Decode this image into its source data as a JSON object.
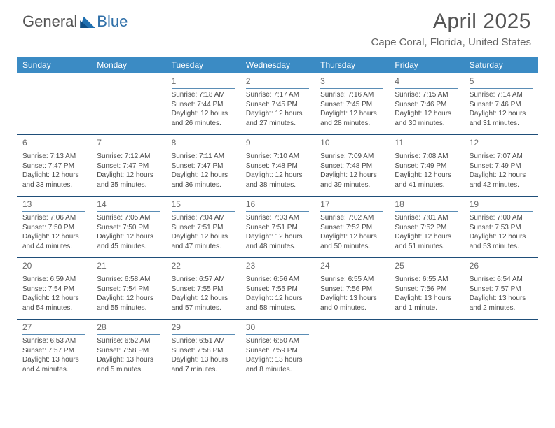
{
  "logo": {
    "text_a": "General",
    "text_b": "Blue"
  },
  "title": "April 2025",
  "subtitle": "Cape Coral, Florida, United States",
  "colors": {
    "header_blue": "#3b8bc4",
    "rule_dark": "#1f4e79",
    "rule_mid": "#5b8db5",
    "background": "#ffffff",
    "text": "#333333"
  },
  "day_headers": [
    "Sunday",
    "Monday",
    "Tuesday",
    "Wednesday",
    "Thursday",
    "Friday",
    "Saturday"
  ],
  "weeks": [
    [
      {
        "empty": true
      },
      {
        "empty": true
      },
      {
        "num": "1",
        "sunrise": "Sunrise: 7:18 AM",
        "sunset": "Sunset: 7:44 PM",
        "daylight1": "Daylight: 12 hours",
        "daylight2": "and 26 minutes."
      },
      {
        "num": "2",
        "sunrise": "Sunrise: 7:17 AM",
        "sunset": "Sunset: 7:45 PM",
        "daylight1": "Daylight: 12 hours",
        "daylight2": "and 27 minutes."
      },
      {
        "num": "3",
        "sunrise": "Sunrise: 7:16 AM",
        "sunset": "Sunset: 7:45 PM",
        "daylight1": "Daylight: 12 hours",
        "daylight2": "and 28 minutes."
      },
      {
        "num": "4",
        "sunrise": "Sunrise: 7:15 AM",
        "sunset": "Sunset: 7:46 PM",
        "daylight1": "Daylight: 12 hours",
        "daylight2": "and 30 minutes."
      },
      {
        "num": "5",
        "sunrise": "Sunrise: 7:14 AM",
        "sunset": "Sunset: 7:46 PM",
        "daylight1": "Daylight: 12 hours",
        "daylight2": "and 31 minutes."
      }
    ],
    [
      {
        "num": "6",
        "sunrise": "Sunrise: 7:13 AM",
        "sunset": "Sunset: 7:47 PM",
        "daylight1": "Daylight: 12 hours",
        "daylight2": "and 33 minutes."
      },
      {
        "num": "7",
        "sunrise": "Sunrise: 7:12 AM",
        "sunset": "Sunset: 7:47 PM",
        "daylight1": "Daylight: 12 hours",
        "daylight2": "and 35 minutes."
      },
      {
        "num": "8",
        "sunrise": "Sunrise: 7:11 AM",
        "sunset": "Sunset: 7:47 PM",
        "daylight1": "Daylight: 12 hours",
        "daylight2": "and 36 minutes."
      },
      {
        "num": "9",
        "sunrise": "Sunrise: 7:10 AM",
        "sunset": "Sunset: 7:48 PM",
        "daylight1": "Daylight: 12 hours",
        "daylight2": "and 38 minutes."
      },
      {
        "num": "10",
        "sunrise": "Sunrise: 7:09 AM",
        "sunset": "Sunset: 7:48 PM",
        "daylight1": "Daylight: 12 hours",
        "daylight2": "and 39 minutes."
      },
      {
        "num": "11",
        "sunrise": "Sunrise: 7:08 AM",
        "sunset": "Sunset: 7:49 PM",
        "daylight1": "Daylight: 12 hours",
        "daylight2": "and 41 minutes."
      },
      {
        "num": "12",
        "sunrise": "Sunrise: 7:07 AM",
        "sunset": "Sunset: 7:49 PM",
        "daylight1": "Daylight: 12 hours",
        "daylight2": "and 42 minutes."
      }
    ],
    [
      {
        "num": "13",
        "sunrise": "Sunrise: 7:06 AM",
        "sunset": "Sunset: 7:50 PM",
        "daylight1": "Daylight: 12 hours",
        "daylight2": "and 44 minutes."
      },
      {
        "num": "14",
        "sunrise": "Sunrise: 7:05 AM",
        "sunset": "Sunset: 7:50 PM",
        "daylight1": "Daylight: 12 hours",
        "daylight2": "and 45 minutes."
      },
      {
        "num": "15",
        "sunrise": "Sunrise: 7:04 AM",
        "sunset": "Sunset: 7:51 PM",
        "daylight1": "Daylight: 12 hours",
        "daylight2": "and 47 minutes."
      },
      {
        "num": "16",
        "sunrise": "Sunrise: 7:03 AM",
        "sunset": "Sunset: 7:51 PM",
        "daylight1": "Daylight: 12 hours",
        "daylight2": "and 48 minutes."
      },
      {
        "num": "17",
        "sunrise": "Sunrise: 7:02 AM",
        "sunset": "Sunset: 7:52 PM",
        "daylight1": "Daylight: 12 hours",
        "daylight2": "and 50 minutes."
      },
      {
        "num": "18",
        "sunrise": "Sunrise: 7:01 AM",
        "sunset": "Sunset: 7:52 PM",
        "daylight1": "Daylight: 12 hours",
        "daylight2": "and 51 minutes."
      },
      {
        "num": "19",
        "sunrise": "Sunrise: 7:00 AM",
        "sunset": "Sunset: 7:53 PM",
        "daylight1": "Daylight: 12 hours",
        "daylight2": "and 53 minutes."
      }
    ],
    [
      {
        "num": "20",
        "sunrise": "Sunrise: 6:59 AM",
        "sunset": "Sunset: 7:54 PM",
        "daylight1": "Daylight: 12 hours",
        "daylight2": "and 54 minutes."
      },
      {
        "num": "21",
        "sunrise": "Sunrise: 6:58 AM",
        "sunset": "Sunset: 7:54 PM",
        "daylight1": "Daylight: 12 hours",
        "daylight2": "and 55 minutes."
      },
      {
        "num": "22",
        "sunrise": "Sunrise: 6:57 AM",
        "sunset": "Sunset: 7:55 PM",
        "daylight1": "Daylight: 12 hours",
        "daylight2": "and 57 minutes."
      },
      {
        "num": "23",
        "sunrise": "Sunrise: 6:56 AM",
        "sunset": "Sunset: 7:55 PM",
        "daylight1": "Daylight: 12 hours",
        "daylight2": "and 58 minutes."
      },
      {
        "num": "24",
        "sunrise": "Sunrise: 6:55 AM",
        "sunset": "Sunset: 7:56 PM",
        "daylight1": "Daylight: 13 hours",
        "daylight2": "and 0 minutes."
      },
      {
        "num": "25",
        "sunrise": "Sunrise: 6:55 AM",
        "sunset": "Sunset: 7:56 PM",
        "daylight1": "Daylight: 13 hours",
        "daylight2": "and 1 minute."
      },
      {
        "num": "26",
        "sunrise": "Sunrise: 6:54 AM",
        "sunset": "Sunset: 7:57 PM",
        "daylight1": "Daylight: 13 hours",
        "daylight2": "and 2 minutes."
      }
    ],
    [
      {
        "num": "27",
        "sunrise": "Sunrise: 6:53 AM",
        "sunset": "Sunset: 7:57 PM",
        "daylight1": "Daylight: 13 hours",
        "daylight2": "and 4 minutes."
      },
      {
        "num": "28",
        "sunrise": "Sunrise: 6:52 AM",
        "sunset": "Sunset: 7:58 PM",
        "daylight1": "Daylight: 13 hours",
        "daylight2": "and 5 minutes."
      },
      {
        "num": "29",
        "sunrise": "Sunrise: 6:51 AM",
        "sunset": "Sunset: 7:58 PM",
        "daylight1": "Daylight: 13 hours",
        "daylight2": "and 7 minutes."
      },
      {
        "num": "30",
        "sunrise": "Sunrise: 6:50 AM",
        "sunset": "Sunset: 7:59 PM",
        "daylight1": "Daylight: 13 hours",
        "daylight2": "and 8 minutes."
      },
      {
        "empty": true
      },
      {
        "empty": true
      },
      {
        "empty": true
      }
    ]
  ]
}
